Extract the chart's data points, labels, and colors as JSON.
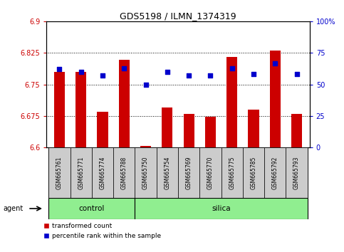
{
  "title": "GDS5198 / ILMN_1374319",
  "samples": [
    "GSM665761",
    "GSM665771",
    "GSM665774",
    "GSM665788",
    "GSM665750",
    "GSM665754",
    "GSM665769",
    "GSM665770",
    "GSM665775",
    "GSM665785",
    "GSM665792",
    "GSM665793"
  ],
  "groups": [
    "control",
    "control",
    "control",
    "control",
    "silica",
    "silica",
    "silica",
    "silica",
    "silica",
    "silica",
    "silica",
    "silica"
  ],
  "transformed_count": [
    6.78,
    6.78,
    6.685,
    6.808,
    6.603,
    6.695,
    6.68,
    6.673,
    6.815,
    6.69,
    6.83,
    6.68
  ],
  "percentile_rank": [
    62,
    60,
    57,
    63,
    50,
    60,
    57,
    57,
    63,
    58,
    67,
    58
  ],
  "ylim_left": [
    6.6,
    6.9
  ],
  "ylim_right": [
    0,
    100
  ],
  "yticks_left": [
    6.6,
    6.675,
    6.75,
    6.825,
    6.9
  ],
  "yticks_right": [
    0,
    25,
    50,
    75,
    100
  ],
  "ytick_labels_left": [
    "6.6",
    "6.675",
    "6.75",
    "6.825",
    "6.9"
  ],
  "ytick_labels_right": [
    "0",
    "25",
    "50",
    "75",
    "100%"
  ],
  "bar_color": "#cc0000",
  "dot_color": "#0000cc",
  "bg_color": "#ffffff",
  "tick_bg": "#cccccc",
  "group_bg": "#90ee90",
  "legend_red": "transformed count",
  "legend_blue": "percentile rank within the sample",
  "agent_label": "agent",
  "n_control": 4,
  "n_total": 12
}
